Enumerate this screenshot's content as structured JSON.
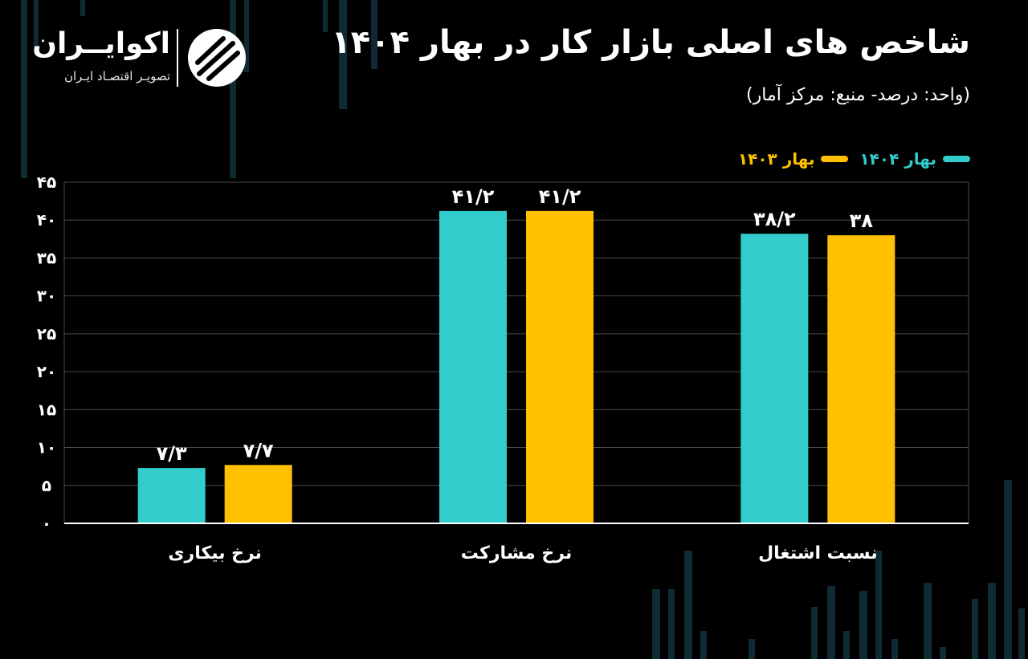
{
  "header": {
    "title": "شاخص های اصلی بازار کار در بهار ۱۴۰۴",
    "subtitle": "(واحد: درصد- منبع: مرکز آمار)"
  },
  "brand": {
    "name": "اکوایــران",
    "tagline": "تصویـر اقتصـاد ایـران",
    "logo_icon": "ecoiran-logo-icon"
  },
  "colors": {
    "background": "#000000",
    "series_1404": "#33CCCC",
    "series_1403": "#FFC000",
    "gridline": "#4a4a4a",
    "axis": "#ffffff",
    "decor_bars": "#0f2a33"
  },
  "chart_data": {
    "type": "bar",
    "title": "شاخص های اصلی بازار کار در بهار ۱۴۰۴",
    "subtitle": "(واحد: درصد- منبع: مرکز آمار)",
    "categories": [
      "نرخ بیکاری",
      "نرخ مشارکت",
      "نسبت اشتغال"
    ],
    "series": [
      {
        "name": "بهار ۱۴۰۴",
        "color": "#33CCCC",
        "values": [
          7.3,
          41.2,
          38.2
        ],
        "labels": [
          "۷/۳",
          "۴۱/۲",
          "۳۸/۲"
        ]
      },
      {
        "name": "بهار ۱۴۰۳",
        "color": "#FFC000",
        "values": [
          7.7,
          41.2,
          38
        ],
        "labels": [
          "۷/۷",
          "۴۱/۲",
          "۳۸"
        ]
      }
    ],
    "ylim": [
      0,
      45
    ],
    "yticks": [
      0,
      5,
      10,
      15,
      20,
      25,
      30,
      35,
      40,
      45
    ],
    "ytick_labels": [
      "۰",
      "۵",
      "۱۰",
      "۱۵",
      "۲۰",
      "۲۵",
      "۳۰",
      "۳۵",
      "۴۰",
      "۴۵"
    ],
    "xlabel": "",
    "ylabel": "",
    "grid": true,
    "legend_position": "top-right"
  }
}
